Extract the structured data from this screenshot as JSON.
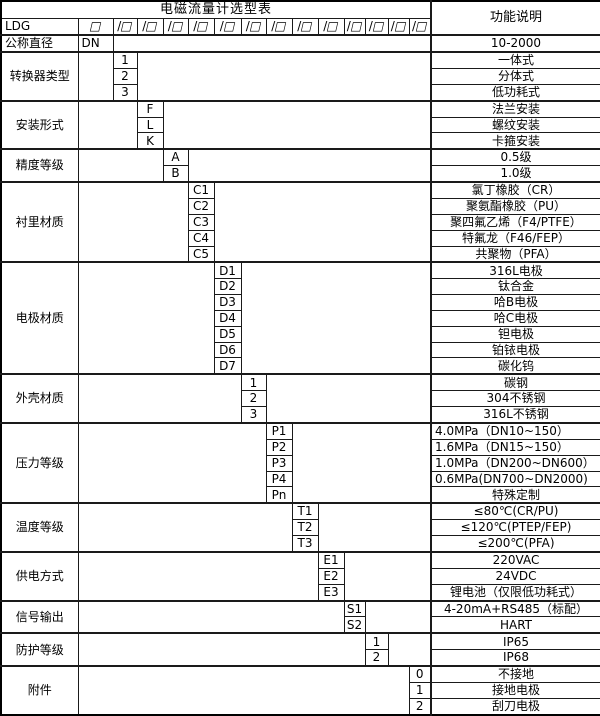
{
  "title": "电磁流量计选型表",
  "function_header": "功能说明",
  "model": {
    "prefix": "LDG",
    "box": "□",
    "slot": "/□",
    "slot_count": 13
  },
  "sections": [
    {
      "label": "公称直径",
      "label_align": "left",
      "code_col": 0,
      "rows": [
        {
          "code": "DN",
          "code_align": "left",
          "desc": "10-2000"
        }
      ]
    },
    {
      "label": "转换器类型",
      "code_col": 1,
      "rows": [
        {
          "code": "1",
          "desc": "一体式"
        },
        {
          "code": "2",
          "desc": "分体式"
        },
        {
          "code": "3",
          "desc": "低功耗式"
        }
      ]
    },
    {
      "label": "安装形式",
      "code_col": 2,
      "rows": [
        {
          "code": "F",
          "desc": "法兰安装"
        },
        {
          "code": "L",
          "desc": "螺纹安装"
        },
        {
          "code": "K",
          "desc": "卡箍安装"
        }
      ]
    },
    {
      "label": "精度等级",
      "code_col": 3,
      "rows": [
        {
          "code": "A",
          "desc": "0.5级"
        },
        {
          "code": "B",
          "desc": "1.0级"
        }
      ]
    },
    {
      "label": "衬里材质",
      "code_col": 4,
      "rows": [
        {
          "code": "C1",
          "desc": "氯丁橡胶（CR）"
        },
        {
          "code": "C2",
          "desc": "聚氨酯橡胶（PU）"
        },
        {
          "code": "C3",
          "desc": "聚四氟乙烯（F4/PTFE）"
        },
        {
          "code": "C4",
          "desc": "特氟龙（F46/FEP）"
        },
        {
          "code": "C5",
          "desc": "共聚物（PFA）"
        }
      ]
    },
    {
      "label": "电极材质",
      "code_col": 5,
      "rows": [
        {
          "code": "D1",
          "desc": "316L电极"
        },
        {
          "code": "D2",
          "desc": "钛合金"
        },
        {
          "code": "D3",
          "desc": "哈B电极"
        },
        {
          "code": "D4",
          "desc": "哈C电极"
        },
        {
          "code": "D5",
          "desc": "钽电极"
        },
        {
          "code": "D6",
          "desc": "铂铱电极"
        },
        {
          "code": "D7",
          "desc": "碳化钨"
        }
      ]
    },
    {
      "label": "外壳材质",
      "code_col": 6,
      "rows": [
        {
          "code": "1",
          "desc": "碳钢"
        },
        {
          "code": "2",
          "desc": "304不锈钢"
        },
        {
          "code": "3",
          "desc": "316L不锈钢"
        }
      ]
    },
    {
      "label": "压力等级",
      "code_col": 7,
      "rows": [
        {
          "code": "P1",
          "desc": "4.0MPa（DN10~150）",
          "desc_align": "left"
        },
        {
          "code": "P2",
          "desc": "1.6MPa（DN15~150）",
          "desc_align": "left"
        },
        {
          "code": "P3",
          "desc": "1.0MPa（DN200~DN600）",
          "desc_align": "left"
        },
        {
          "code": "P4",
          "desc": "0.6MPa(DN700~DN2000)",
          "desc_align": "left"
        },
        {
          "code": "Pn",
          "desc": "特殊定制"
        }
      ]
    },
    {
      "label": "温度等级",
      "code_col": 8,
      "rows": [
        {
          "code": "T1",
          "desc": "≤80℃(CR/PU)"
        },
        {
          "code": "T2",
          "desc": "≤120℃(PTEP/FEP)"
        },
        {
          "code": "T3",
          "desc": "≤200℃(PFA)"
        }
      ]
    },
    {
      "label": "供电方式",
      "code_col": 9,
      "rows": [
        {
          "code": "E1",
          "desc": "220VAC"
        },
        {
          "code": "E2",
          "desc": "24VDC"
        },
        {
          "code": "E3",
          "desc": "锂电池（仅限低功耗式）"
        }
      ]
    },
    {
      "label": "信号输出",
      "code_col": 10,
      "rows": [
        {
          "code": "S1",
          "desc": "4-20mA+RS485（标配）"
        },
        {
          "code": "S2",
          "desc": "HART"
        }
      ]
    },
    {
      "label": "防护等级",
      "code_col": 11,
      "rows": [
        {
          "code": "1",
          "desc": "IP65"
        },
        {
          "code": "2",
          "desc": "IP68"
        }
      ]
    },
    {
      "label": "附件",
      "code_col": 13,
      "rows": [
        {
          "code": "0",
          "desc": "不接地"
        },
        {
          "code": "1",
          "desc": "接地电极"
        },
        {
          "code": "2",
          "desc": "刮刀电极"
        }
      ]
    }
  ],
  "colors": {
    "border": "#1a1a1a",
    "background": "#ffffff",
    "text": "#000000"
  }
}
